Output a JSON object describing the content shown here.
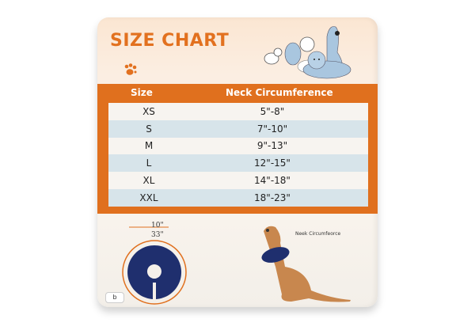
{
  "title": "SIZE CHART",
  "table": {
    "headers": [
      "Size",
      "Neck Circumference"
    ],
    "rows": [
      {
        "size": "XS",
        "neck": "5\"-8\""
      },
      {
        "size": "S",
        "neck": "7\"-10\""
      },
      {
        "size": "M",
        "neck": "9\"-13\""
      },
      {
        "size": "L",
        "neck": "12\"-15\""
      },
      {
        "size": "XL",
        "neck": "14\"-18\""
      },
      {
        "size": "XXL",
        "neck": "18\"-23\""
      }
    ]
  },
  "collar": {
    "width_label": "10\"",
    "circumference_label": "33\""
  },
  "dog_label": "Neek Circumfeorce",
  "corner_label": "b",
  "colors": {
    "orange": "#e0701e",
    "row_blue": "#d7e4ea",
    "collar_navy": "#1f2f6e"
  }
}
